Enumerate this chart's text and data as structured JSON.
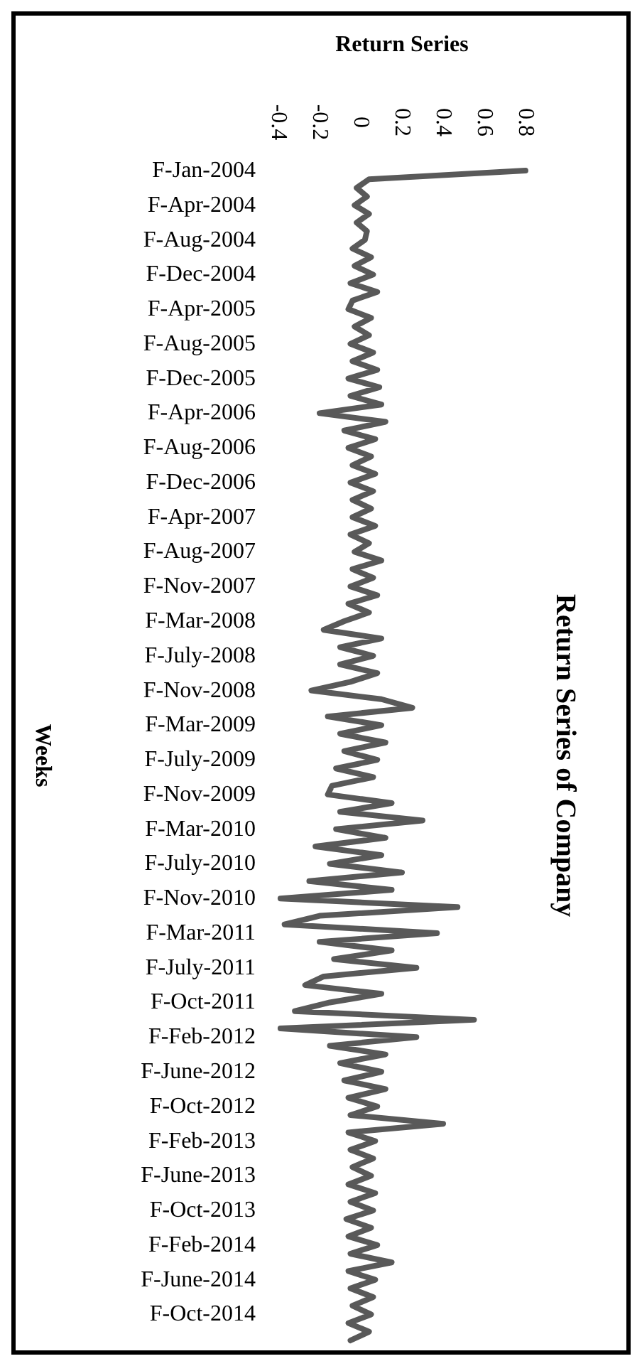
{
  "chart_data": {
    "type": "line",
    "title": "Return Series of Company",
    "xlabel": "Return Series",
    "ylabel": "Weeks",
    "categories": [
      "F-Jan-2004",
      null,
      null,
      null,
      "F-Apr-2004",
      null,
      null,
      null,
      "F-Aug-2004",
      null,
      null,
      null,
      "F-Dec-2004",
      null,
      null,
      null,
      "F-Apr-2005",
      null,
      null,
      null,
      "F-Aug-2005",
      null,
      null,
      null,
      "F-Dec-2005",
      null,
      null,
      null,
      "F-Apr-2006",
      null,
      null,
      null,
      "F-Aug-2006",
      null,
      null,
      null,
      "F-Dec-2006",
      null,
      null,
      null,
      "F-Apr-2007",
      null,
      null,
      null,
      "F-Aug-2007",
      null,
      null,
      null,
      "F-Nov-2007",
      null,
      null,
      null,
      "F-Mar-2008",
      null,
      null,
      null,
      "F-July-2008",
      null,
      null,
      null,
      "F-Nov-2008",
      null,
      null,
      null,
      "F-Mar-2009",
      null,
      null,
      null,
      "F-July-2009",
      null,
      null,
      null,
      "F-Nov-2009",
      null,
      null,
      null,
      "F-Mar-2010",
      null,
      null,
      null,
      "F-July-2010",
      null,
      null,
      null,
      "F-Nov-2010",
      null,
      null,
      null,
      "F-Mar-2011",
      null,
      null,
      null,
      "F-July-2011",
      null,
      null,
      null,
      "F-Oct-2011",
      null,
      null,
      null,
      "F-Feb-2012",
      null,
      null,
      null,
      "F-June-2012",
      null,
      null,
      null,
      "F-Oct-2012",
      null,
      null,
      null,
      "F-Feb-2013",
      null,
      null,
      null,
      "F-June-2013",
      null,
      null,
      null,
      "F-Oct-2013",
      null,
      null,
      null,
      "F-Feb-2014",
      null,
      null,
      null,
      "F-June-2014",
      null,
      null,
      null,
      "F-Oct-2014",
      null,
      null,
      null
    ],
    "series": [
      {
        "color": "#595959",
        "values": [
          0.8,
          0.04,
          -0.02,
          0.03,
          -0.03,
          0.04,
          -0.02,
          0.03,
          0.02,
          -0.04,
          0.05,
          -0.03,
          0.06,
          -0.05,
          0.08,
          -0.04,
          -0.06,
          0.05,
          -0.03,
          0.04,
          -0.05,
          0.06,
          -0.04,
          0.08,
          -0.06,
          0.09,
          -0.05,
          0.1,
          -0.2,
          0.12,
          -0.08,
          0.07,
          -0.06,
          0.05,
          -0.04,
          0.07,
          -0.05,
          0.06,
          -0.04,
          0.05,
          -0.04,
          0.07,
          -0.05,
          0.04,
          -0.03,
          0.1,
          -0.04,
          0.06,
          -0.05,
          0.08,
          -0.06,
          0.04,
          -0.08,
          -0.18,
          0.1,
          -0.1,
          0.06,
          -0.1,
          0.08,
          -0.05,
          -0.24,
          0.1,
          0.25,
          -0.16,
          0.1,
          -0.1,
          0.12,
          -0.08,
          0.08,
          -0.12,
          0.06,
          -0.14,
          -0.16,
          0.15,
          -0.1,
          0.3,
          -0.12,
          0.12,
          -0.22,
          0.1,
          -0.15,
          0.2,
          -0.25,
          0.15,
          -0.39,
          0.47,
          -0.2,
          -0.37,
          0.37,
          -0.2,
          0.15,
          -0.13,
          0.27,
          -0.18,
          -0.27,
          0.1,
          -0.15,
          -0.32,
          0.55,
          -0.39,
          0.27,
          -0.15,
          0.12,
          -0.1,
          0.1,
          -0.08,
          0.12,
          -0.06,
          0.08,
          -0.05,
          0.4,
          -0.06,
          0.07,
          -0.05,
          0.06,
          -0.04,
          0.05,
          -0.06,
          0.07,
          -0.05,
          0.06,
          -0.07,
          0.05,
          -0.06,
          0.08,
          -0.05,
          0.15,
          -0.06,
          0.07,
          -0.05,
          0.06,
          -0.04,
          0.05,
          -0.06,
          0.04,
          -0.05
        ]
      }
    ],
    "orientation": "horizontal",
    "xlim": [
      -0.4,
      0.8
    ],
    "xticks": [
      -0.4,
      -0.2,
      0,
      0.2,
      0.4,
      0.6,
      0.8
    ]
  }
}
